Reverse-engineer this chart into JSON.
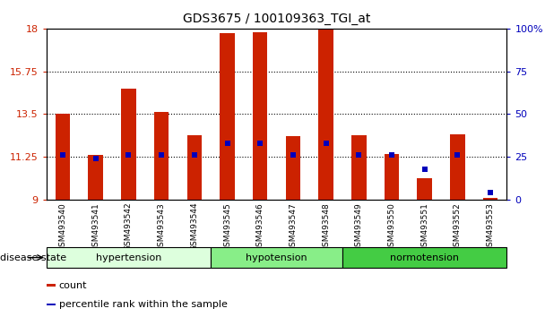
{
  "title": "GDS3675 / 100109363_TGI_at",
  "samples": [
    "GSM493540",
    "GSM493541",
    "GSM493542",
    "GSM493543",
    "GSM493544",
    "GSM493545",
    "GSM493546",
    "GSM493547",
    "GSM493548",
    "GSM493549",
    "GSM493550",
    "GSM493551",
    "GSM493552",
    "GSM493553"
  ],
  "bar_values": [
    13.5,
    11.35,
    14.85,
    13.6,
    12.4,
    17.75,
    17.8,
    12.35,
    18.0,
    12.4,
    11.4,
    10.15,
    12.45,
    9.1
  ],
  "percentile_values": [
    26,
    24,
    26,
    26,
    26,
    33,
    33,
    26,
    33,
    26,
    26,
    18,
    26,
    4
  ],
  "ymin": 9,
  "ymax": 18,
  "yticks": [
    9,
    11.25,
    13.5,
    15.75,
    18
  ],
  "right_yticks": [
    0,
    25,
    50,
    75,
    100
  ],
  "right_ytick_labels": [
    "0",
    "25",
    "50",
    "75",
    "100%"
  ],
  "bar_color": "#cc2200",
  "percentile_color": "#0000bb",
  "bar_width": 0.45,
  "groups": [
    {
      "label": "hypertension",
      "start": 0,
      "end": 5,
      "color": "#ddffdd"
    },
    {
      "label": "hypotension",
      "start": 5,
      "end": 9,
      "color": "#88ee88"
    },
    {
      "label": "normotension",
      "start": 9,
      "end": 14,
      "color": "#44cc44"
    }
  ],
  "disease_state_label": "disease state",
  "legend_count_color": "#cc2200",
  "legend_pct_color": "#0000bb",
  "bg_color": "#ffffff"
}
